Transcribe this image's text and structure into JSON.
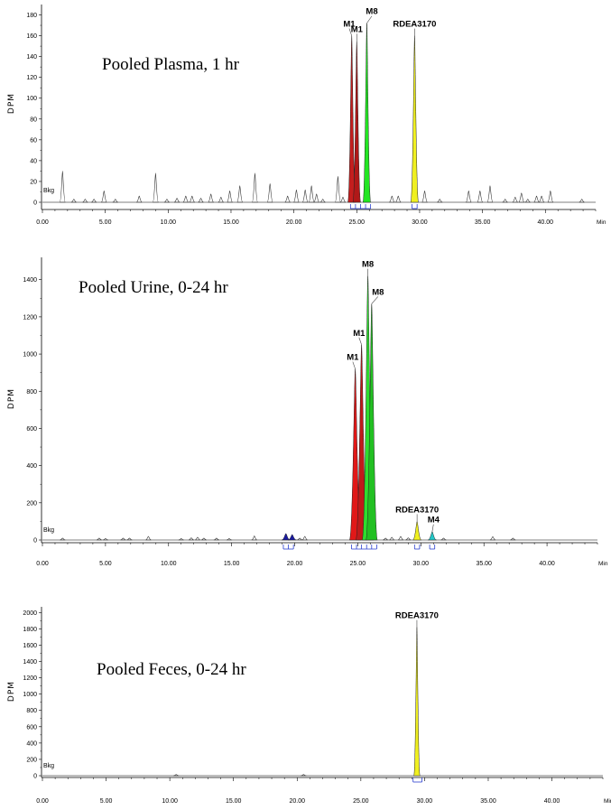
{
  "chart_data": [
    {
      "type": "line",
      "title": "Pooled Plasma, 1 hr",
      "ylabel": "DPM",
      "xunit": "Min",
      "baseline_label": "Bkg",
      "xlim": [
        0,
        44
      ],
      "ylim": [
        0,
        190
      ],
      "xticks": [
        "0.00",
        "5.00",
        "10.00",
        "15.00",
        "20.00",
        "25.00",
        "30.00",
        "35.00",
        "40.00"
      ],
      "yticks": [
        "0",
        "20",
        "40",
        "60",
        "80",
        "100",
        "120",
        "140",
        "160",
        "180"
      ],
      "noise_peaks": [
        {
          "x": 1.6,
          "y": 30
        },
        {
          "x": 2.5,
          "y": 3
        },
        {
          "x": 3.4,
          "y": 3
        },
        {
          "x": 4.1,
          "y": 3
        },
        {
          "x": 4.9,
          "y": 11
        },
        {
          "x": 5.8,
          "y": 3
        },
        {
          "x": 7.7,
          "y": 6
        },
        {
          "x": 9.0,
          "y": 28
        },
        {
          "x": 9.9,
          "y": 3
        },
        {
          "x": 10.7,
          "y": 4
        },
        {
          "x": 11.4,
          "y": 6
        },
        {
          "x": 11.9,
          "y": 6
        },
        {
          "x": 12.6,
          "y": 4
        },
        {
          "x": 13.4,
          "y": 8
        },
        {
          "x": 14.2,
          "y": 5
        },
        {
          "x": 14.9,
          "y": 11
        },
        {
          "x": 15.7,
          "y": 16
        },
        {
          "x": 16.9,
          "y": 28
        },
        {
          "x": 18.1,
          "y": 18
        },
        {
          "x": 19.5,
          "y": 6
        },
        {
          "x": 20.2,
          "y": 12
        },
        {
          "x": 20.9,
          "y": 12
        },
        {
          "x": 21.4,
          "y": 16
        },
        {
          "x": 21.8,
          "y": 8
        },
        {
          "x": 22.3,
          "y": 3
        },
        {
          "x": 23.5,
          "y": 25
        },
        {
          "x": 23.9,
          "y": 5
        },
        {
          "x": 27.8,
          "y": 6
        },
        {
          "x": 28.3,
          "y": 6
        },
        {
          "x": 30.4,
          "y": 11
        },
        {
          "x": 31.6,
          "y": 3
        },
        {
          "x": 33.9,
          "y": 11
        },
        {
          "x": 34.8,
          "y": 11
        },
        {
          "x": 35.6,
          "y": 16
        },
        {
          "x": 36.8,
          "y": 3
        },
        {
          "x": 37.6,
          "y": 5
        },
        {
          "x": 38.1,
          "y": 9
        },
        {
          "x": 38.6,
          "y": 3
        },
        {
          "x": 39.3,
          "y": 6
        },
        {
          "x": 39.7,
          "y": 6
        },
        {
          "x": 40.4,
          "y": 11
        },
        {
          "x": 42.9,
          "y": 3
        }
      ],
      "series": [
        {
          "name": "M1",
          "color": "#c41e1e",
          "peaks": [
            {
              "x": 24.6,
              "y": 160
            }
          ],
          "label_x": 24.4
        },
        {
          "name": "M1",
          "color": "#b01818",
          "peaks": [
            {
              "x": 25.0,
              "y": 155
            }
          ],
          "label_x": 25.0
        },
        {
          "name": "M8",
          "color": "#22e622",
          "peaks": [
            {
              "x": 25.8,
              "y": 172
            }
          ],
          "label_x": 26.2
        },
        {
          "name": "RDEA3170",
          "color": "#f0f020",
          "peaks": [
            {
              "x": 29.6,
              "y": 160
            }
          ],
          "label_x": 29.6
        }
      ],
      "integration_marks": [
        [
          24.5,
          24.9,
          25.3,
          25.7,
          26.1
        ],
        [
          29.4,
          29.8
        ]
      ]
    },
    {
      "type": "line",
      "title": "Pooled Urine, 0-24 hr",
      "ylabel": "DPM",
      "xunit": "Min",
      "baseline_label": "Bkg",
      "xlim": [
        0,
        44
      ],
      "ylim": [
        -70,
        1520
      ],
      "xticks": [
        "0.00",
        "5.00",
        "10.00",
        "15.00",
        "20.00",
        "25.00",
        "30.00",
        "35.00",
        "40.00"
      ],
      "yticks": [
        "0",
        "200",
        "400",
        "600",
        "800",
        "1000",
        "1200",
        "1400"
      ],
      "noise_peaks": [
        {
          "x": 1.6,
          "y": 10
        },
        {
          "x": 4.5,
          "y": 10
        },
        {
          "x": 5.0,
          "y": 8
        },
        {
          "x": 6.4,
          "y": 10
        },
        {
          "x": 6.9,
          "y": 10
        },
        {
          "x": 8.4,
          "y": 20
        },
        {
          "x": 11.0,
          "y": 8
        },
        {
          "x": 11.8,
          "y": 12
        },
        {
          "x": 12.3,
          "y": 15
        },
        {
          "x": 12.8,
          "y": 10
        },
        {
          "x": 13.8,
          "y": 10
        },
        {
          "x": 14.8,
          "y": 8
        },
        {
          "x": 16.8,
          "y": 22
        },
        {
          "x": 20.4,
          "y": 10
        },
        {
          "x": 20.8,
          "y": 20
        },
        {
          "x": 27.2,
          "y": 10
        },
        {
          "x": 27.7,
          "y": 15
        },
        {
          "x": 28.4,
          "y": 20
        },
        {
          "x": 29.0,
          "y": 12
        },
        {
          "x": 31.8,
          "y": 10
        },
        {
          "x": 35.7,
          "y": 18
        },
        {
          "x": 37.3,
          "y": 10
        }
      ],
      "series": [
        {
          "name": "",
          "color": "#1a1aa0",
          "peaks": [
            {
              "x": 19.3,
              "y": 35
            },
            {
              "x": 19.8,
              "y": 30
            }
          ]
        },
        {
          "name": "M1",
          "color": "#e11818",
          "peaks": [
            {
              "x": 24.8,
              "y": 920
            }
          ],
          "label_x": 24.6
        },
        {
          "name": "M1",
          "color": "#c01a1a",
          "peaks": [
            {
              "x": 25.3,
              "y": 1050
            }
          ],
          "label_x": 25.1
        },
        {
          "name": "M8",
          "color": "#2ede2e",
          "peaks": [
            {
              "x": 25.8,
              "y": 1420
            }
          ],
          "label_x": 25.8
        },
        {
          "name": "M8",
          "color": "#22c022",
          "peaks": [
            {
              "x": 26.1,
              "y": 1270
            }
          ],
          "label_x": 26.6
        },
        {
          "name": "RDEA3170",
          "color": "#f0f020",
          "peaks": [
            {
              "x": 29.7,
              "y": 100
            }
          ],
          "label_x": 29.7
        },
        {
          "name": "M4",
          "color": "#22c8c8",
          "peaks": [
            {
              "x": 30.9,
              "y": 45
            }
          ],
          "label_x": 31.0
        }
      ],
      "integration_marks": [
        [
          19.1,
          19.5,
          19.9
        ],
        [
          24.5,
          24.9,
          25.3,
          25.7,
          26.1,
          26.5
        ],
        [
          29.5,
          29.9
        ],
        [
          30.7,
          31.1
        ]
      ]
    },
    {
      "type": "line",
      "title": "Pooled Feces, 0-24 hr",
      "ylabel": "DPM",
      "xunit": "Min",
      "baseline_label": "Bkg",
      "xlim": [
        0,
        44
      ],
      "ylim": [
        -50,
        2070
      ],
      "xticks": [
        "0.00",
        "5.00",
        "10.00",
        "15.00",
        "20.00",
        "25.00",
        "30.00",
        "35.00",
        "40.00"
      ],
      "yticks": [
        "0",
        "200",
        "400",
        "600",
        "800",
        "1000",
        "1200",
        "1400",
        "1600",
        "1800",
        "2000"
      ],
      "noise_peaks": [
        {
          "x": 10.5,
          "y": 15
        },
        {
          "x": 20.5,
          "y": 15
        }
      ],
      "series": [
        {
          "name": "RDEA3170",
          "color": "#f0f020",
          "peaks": [
            {
              "x": 29.4,
              "y": 1820
            }
          ],
          "label_x": 29.4
        }
      ],
      "integration_marks": [
        [
          29.1,
          29.8
        ]
      ]
    }
  ]
}
